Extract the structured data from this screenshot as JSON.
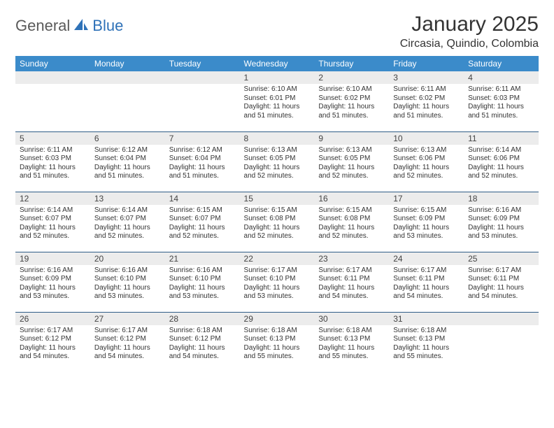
{
  "brand": {
    "part1": "General",
    "part2": "Blue"
  },
  "title": "January 2025",
  "location": "Circasia, Quindio, Colombia",
  "colors": {
    "header_bg": "#3b8bca",
    "header_text": "#ffffff",
    "daynum_bg": "#ececec",
    "row_divider": "#2f5d87",
    "brand_blue": "#2f72b8",
    "brand_gray": "#5a5a5a",
    "body_text": "#333333"
  },
  "typography": {
    "title_fontsize": 30,
    "location_fontsize": 16,
    "weekday_fontsize": 12,
    "daynum_fontsize": 12,
    "cell_fontsize": 10
  },
  "weekdays": [
    "Sunday",
    "Monday",
    "Tuesday",
    "Wednesday",
    "Thursday",
    "Friday",
    "Saturday"
  ],
  "weeks": [
    [
      null,
      null,
      null,
      {
        "n": "1",
        "sr": "Sunrise: 6:10 AM",
        "ss": "Sunset: 6:01 PM",
        "d1": "Daylight: 11 hours",
        "d2": "and 51 minutes."
      },
      {
        "n": "2",
        "sr": "Sunrise: 6:10 AM",
        "ss": "Sunset: 6:02 PM",
        "d1": "Daylight: 11 hours",
        "d2": "and 51 minutes."
      },
      {
        "n": "3",
        "sr": "Sunrise: 6:11 AM",
        "ss": "Sunset: 6:02 PM",
        "d1": "Daylight: 11 hours",
        "d2": "and 51 minutes."
      },
      {
        "n": "4",
        "sr": "Sunrise: 6:11 AM",
        "ss": "Sunset: 6:03 PM",
        "d1": "Daylight: 11 hours",
        "d2": "and 51 minutes."
      }
    ],
    [
      {
        "n": "5",
        "sr": "Sunrise: 6:11 AM",
        "ss": "Sunset: 6:03 PM",
        "d1": "Daylight: 11 hours",
        "d2": "and 51 minutes."
      },
      {
        "n": "6",
        "sr": "Sunrise: 6:12 AM",
        "ss": "Sunset: 6:04 PM",
        "d1": "Daylight: 11 hours",
        "d2": "and 51 minutes."
      },
      {
        "n": "7",
        "sr": "Sunrise: 6:12 AM",
        "ss": "Sunset: 6:04 PM",
        "d1": "Daylight: 11 hours",
        "d2": "and 51 minutes."
      },
      {
        "n": "8",
        "sr": "Sunrise: 6:13 AM",
        "ss": "Sunset: 6:05 PM",
        "d1": "Daylight: 11 hours",
        "d2": "and 52 minutes."
      },
      {
        "n": "9",
        "sr": "Sunrise: 6:13 AM",
        "ss": "Sunset: 6:05 PM",
        "d1": "Daylight: 11 hours",
        "d2": "and 52 minutes."
      },
      {
        "n": "10",
        "sr": "Sunrise: 6:13 AM",
        "ss": "Sunset: 6:06 PM",
        "d1": "Daylight: 11 hours",
        "d2": "and 52 minutes."
      },
      {
        "n": "11",
        "sr": "Sunrise: 6:14 AM",
        "ss": "Sunset: 6:06 PM",
        "d1": "Daylight: 11 hours",
        "d2": "and 52 minutes."
      }
    ],
    [
      {
        "n": "12",
        "sr": "Sunrise: 6:14 AM",
        "ss": "Sunset: 6:07 PM",
        "d1": "Daylight: 11 hours",
        "d2": "and 52 minutes."
      },
      {
        "n": "13",
        "sr": "Sunrise: 6:14 AM",
        "ss": "Sunset: 6:07 PM",
        "d1": "Daylight: 11 hours",
        "d2": "and 52 minutes."
      },
      {
        "n": "14",
        "sr": "Sunrise: 6:15 AM",
        "ss": "Sunset: 6:07 PM",
        "d1": "Daylight: 11 hours",
        "d2": "and 52 minutes."
      },
      {
        "n": "15",
        "sr": "Sunrise: 6:15 AM",
        "ss": "Sunset: 6:08 PM",
        "d1": "Daylight: 11 hours",
        "d2": "and 52 minutes."
      },
      {
        "n": "16",
        "sr": "Sunrise: 6:15 AM",
        "ss": "Sunset: 6:08 PM",
        "d1": "Daylight: 11 hours",
        "d2": "and 52 minutes."
      },
      {
        "n": "17",
        "sr": "Sunrise: 6:15 AM",
        "ss": "Sunset: 6:09 PM",
        "d1": "Daylight: 11 hours",
        "d2": "and 53 minutes."
      },
      {
        "n": "18",
        "sr": "Sunrise: 6:16 AM",
        "ss": "Sunset: 6:09 PM",
        "d1": "Daylight: 11 hours",
        "d2": "and 53 minutes."
      }
    ],
    [
      {
        "n": "19",
        "sr": "Sunrise: 6:16 AM",
        "ss": "Sunset: 6:09 PM",
        "d1": "Daylight: 11 hours",
        "d2": "and 53 minutes."
      },
      {
        "n": "20",
        "sr": "Sunrise: 6:16 AM",
        "ss": "Sunset: 6:10 PM",
        "d1": "Daylight: 11 hours",
        "d2": "and 53 minutes."
      },
      {
        "n": "21",
        "sr": "Sunrise: 6:16 AM",
        "ss": "Sunset: 6:10 PM",
        "d1": "Daylight: 11 hours",
        "d2": "and 53 minutes."
      },
      {
        "n": "22",
        "sr": "Sunrise: 6:17 AM",
        "ss": "Sunset: 6:10 PM",
        "d1": "Daylight: 11 hours",
        "d2": "and 53 minutes."
      },
      {
        "n": "23",
        "sr": "Sunrise: 6:17 AM",
        "ss": "Sunset: 6:11 PM",
        "d1": "Daylight: 11 hours",
        "d2": "and 54 minutes."
      },
      {
        "n": "24",
        "sr": "Sunrise: 6:17 AM",
        "ss": "Sunset: 6:11 PM",
        "d1": "Daylight: 11 hours",
        "d2": "and 54 minutes."
      },
      {
        "n": "25",
        "sr": "Sunrise: 6:17 AM",
        "ss": "Sunset: 6:11 PM",
        "d1": "Daylight: 11 hours",
        "d2": "and 54 minutes."
      }
    ],
    [
      {
        "n": "26",
        "sr": "Sunrise: 6:17 AM",
        "ss": "Sunset: 6:12 PM",
        "d1": "Daylight: 11 hours",
        "d2": "and 54 minutes."
      },
      {
        "n": "27",
        "sr": "Sunrise: 6:17 AM",
        "ss": "Sunset: 6:12 PM",
        "d1": "Daylight: 11 hours",
        "d2": "and 54 minutes."
      },
      {
        "n": "28",
        "sr": "Sunrise: 6:18 AM",
        "ss": "Sunset: 6:12 PM",
        "d1": "Daylight: 11 hours",
        "d2": "and 54 minutes."
      },
      {
        "n": "29",
        "sr": "Sunrise: 6:18 AM",
        "ss": "Sunset: 6:13 PM",
        "d1": "Daylight: 11 hours",
        "d2": "and 55 minutes."
      },
      {
        "n": "30",
        "sr": "Sunrise: 6:18 AM",
        "ss": "Sunset: 6:13 PM",
        "d1": "Daylight: 11 hours",
        "d2": "and 55 minutes."
      },
      {
        "n": "31",
        "sr": "Sunrise: 6:18 AM",
        "ss": "Sunset: 6:13 PM",
        "d1": "Daylight: 11 hours",
        "d2": "and 55 minutes."
      },
      null
    ]
  ]
}
